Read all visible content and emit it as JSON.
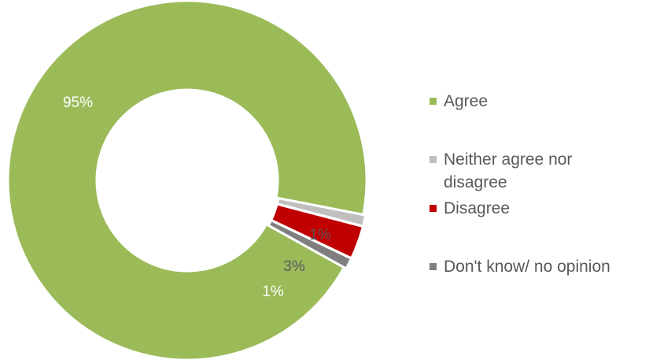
{
  "chart_data": {
    "type": "pie",
    "variant": "donut",
    "categories": [
      "Agree",
      "Neither agree nor disagree",
      "Disagree",
      "Don't know/ no opinion"
    ],
    "values": [
      95,
      1,
      3,
      1
    ],
    "data_labels": [
      "95%",
      "1%",
      "3%",
      "1%"
    ],
    "colors": [
      "#9BBB59",
      "#BFBFBF",
      "#C00000",
      "#7F7F7F"
    ],
    "label_colors": [
      "#FFFFFF",
      "#595959",
      "#595959",
      "#FFFFFF"
    ],
    "legend": {
      "position": "right",
      "entries": [
        "Agree",
        "Neither agree nor disagree",
        "Disagree",
        "Don't know/ no opinion"
      ]
    }
  }
}
